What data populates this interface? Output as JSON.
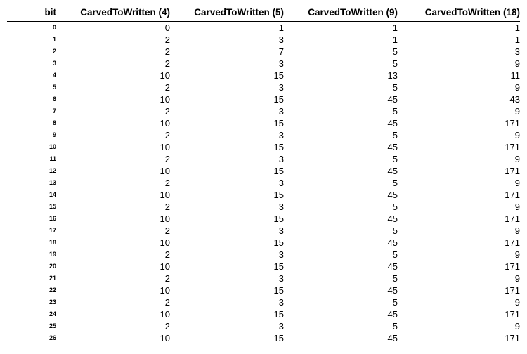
{
  "table": {
    "headers": [
      "bit",
      "CarvedToWritten (4)",
      "CarvedToWritten (5)",
      "CarvedToWritten (9)",
      "CarvedToWritten (18)"
    ],
    "rows": [
      [
        "0",
        "0",
        "1",
        "1",
        "1"
      ],
      [
        "1",
        "2",
        "3",
        "1",
        "1"
      ],
      [
        "2",
        "2",
        "7",
        "5",
        "3"
      ],
      [
        "3",
        "2",
        "3",
        "5",
        "9"
      ],
      [
        "4",
        "10",
        "15",
        "13",
        "11"
      ],
      [
        "5",
        "2",
        "3",
        "5",
        "9"
      ],
      [
        "6",
        "10",
        "15",
        "45",
        "43"
      ],
      [
        "7",
        "2",
        "3",
        "5",
        "9"
      ],
      [
        "8",
        "10",
        "15",
        "45",
        "171"
      ],
      [
        "9",
        "2",
        "3",
        "5",
        "9"
      ],
      [
        "10",
        "10",
        "15",
        "45",
        "171"
      ],
      [
        "11",
        "2",
        "3",
        "5",
        "9"
      ],
      [
        "12",
        "10",
        "15",
        "45",
        "171"
      ],
      [
        "13",
        "2",
        "3",
        "5",
        "9"
      ],
      [
        "14",
        "10",
        "15",
        "45",
        "171"
      ],
      [
        "15",
        "2",
        "3",
        "5",
        "9"
      ],
      [
        "16",
        "10",
        "15",
        "45",
        "171"
      ],
      [
        "17",
        "2",
        "3",
        "5",
        "9"
      ],
      [
        "18",
        "10",
        "15",
        "45",
        "171"
      ],
      [
        "19",
        "2",
        "3",
        "5",
        "9"
      ],
      [
        "20",
        "10",
        "15",
        "45",
        "171"
      ],
      [
        "21",
        "2",
        "3",
        "5",
        "9"
      ],
      [
        "22",
        "10",
        "15",
        "45",
        "171"
      ],
      [
        "23",
        "2",
        "3",
        "5",
        "9"
      ],
      [
        "24",
        "10",
        "15",
        "45",
        "171"
      ],
      [
        "25",
        "2",
        "3",
        "5",
        "9"
      ],
      [
        "26",
        "10",
        "15",
        "45",
        "171"
      ]
    ]
  }
}
